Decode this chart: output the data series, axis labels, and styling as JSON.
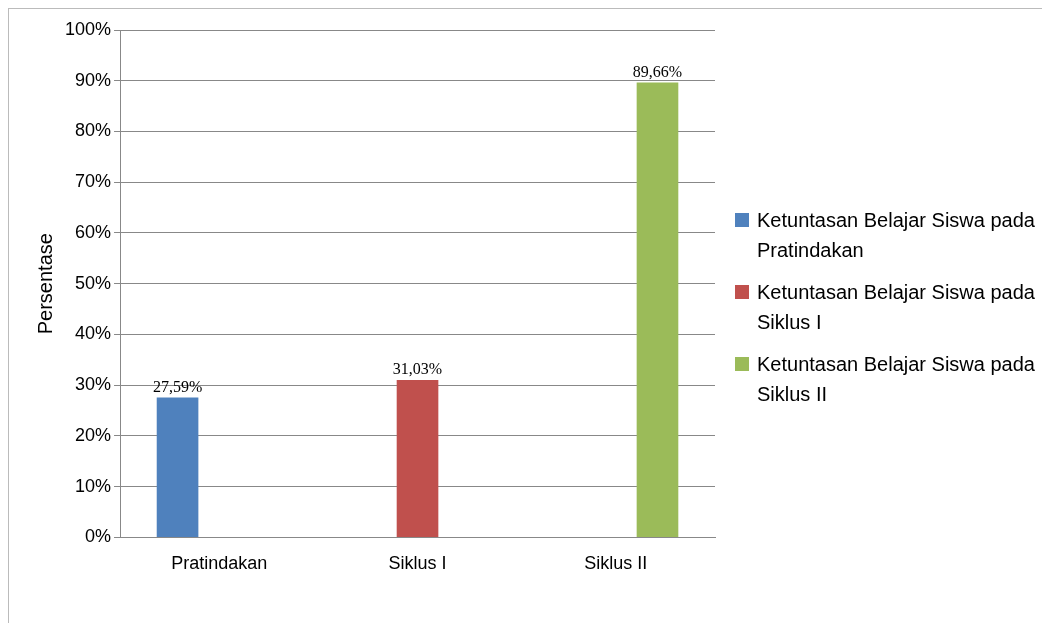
{
  "chart_data": {
    "type": "bar",
    "ylabel": "Persentase",
    "categories": [
      "Pratindakan",
      "Siklus I",
      "Siklus II"
    ],
    "series": [
      {
        "name": "Ketuntasan Belajar Siswa pada Pratindakan",
        "color": "#4f81bd",
        "values": [
          27.59,
          null,
          null
        ],
        "value_labels": [
          "27,59%",
          null,
          null
        ]
      },
      {
        "name": "Ketuntasan Belajar Siswa pada Siklus I",
        "color": "#c0504d",
        "values": [
          null,
          31.03,
          null
        ],
        "value_labels": [
          null,
          "31,03%",
          null
        ]
      },
      {
        "name": "Ketuntasan Belajar Siswa pada Siklus II",
        "color": "#9bbb59",
        "values": [
          null,
          null,
          89.66
        ],
        "value_labels": [
          null,
          null,
          "89,66%"
        ]
      }
    ],
    "ylim": [
      0,
      100
    ],
    "yticks": [
      {
        "value": 0,
        "label": "0%"
      },
      {
        "value": 10,
        "label": "10%"
      },
      {
        "value": 20,
        "label": "20%"
      },
      {
        "value": 30,
        "label": "30%"
      },
      {
        "value": 40,
        "label": "40%"
      },
      {
        "value": 50,
        "label": "50%"
      },
      {
        "value": 60,
        "label": "60%"
      },
      {
        "value": 70,
        "label": "70%"
      },
      {
        "value": 80,
        "label": "80%"
      },
      {
        "value": 90,
        "label": "90%"
      },
      {
        "value": 100,
        "label": "100%"
      }
    ],
    "grid": "y",
    "legend": "right"
  }
}
